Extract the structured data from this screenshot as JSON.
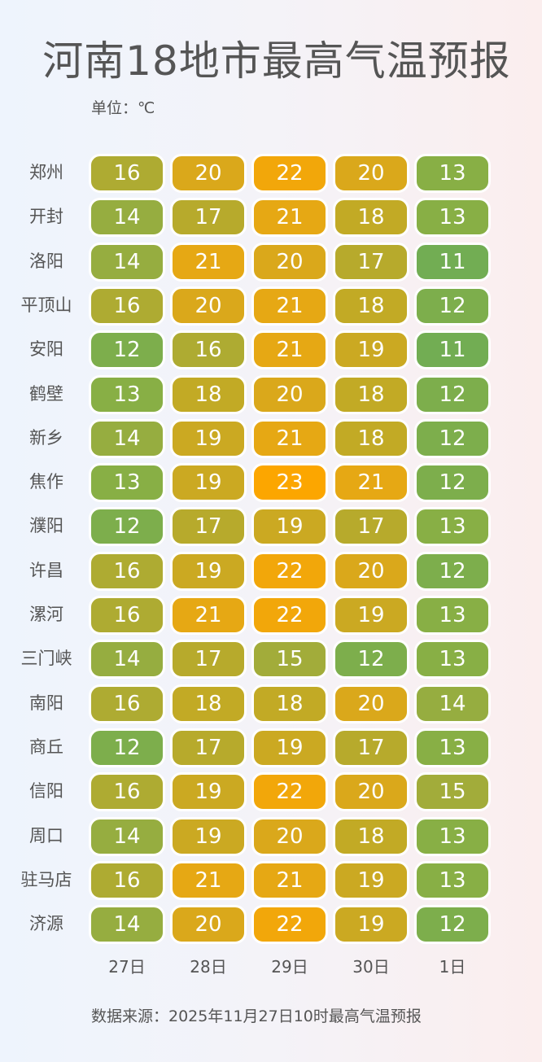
{
  "title": "河南18地市最高气温预报",
  "unit_label": "单位：℃",
  "source_label": "数据来源：2025年11月27日10时最高气温预报",
  "colors": {
    "11": "#72ad53",
    "12": "#7dae4c",
    "13": "#88af45",
    "14": "#96ad40",
    "15": "#a2ac3a",
    "16": "#aeab32",
    "17": "#b7aa2c",
    "18": "#c2aa25",
    "19": "#cba922",
    "20": "#daa81b",
    "21": "#e6a814",
    "22": "#f2a70a",
    "23": "#fca600"
  },
  "days": [
    "27日",
    "28日",
    "29日",
    "30日",
    "1日"
  ],
  "cities": [
    {
      "name": "郑州",
      "temps": [
        16,
        20,
        22,
        20,
        13
      ]
    },
    {
      "name": "开封",
      "temps": [
        14,
        17,
        21,
        18,
        13
      ]
    },
    {
      "name": "洛阳",
      "temps": [
        14,
        21,
        20,
        17,
        11
      ]
    },
    {
      "name": "平顶山",
      "temps": [
        16,
        20,
        21,
        18,
        12
      ]
    },
    {
      "name": "安阳",
      "temps": [
        12,
        16,
        21,
        19,
        11
      ]
    },
    {
      "name": "鹤壁",
      "temps": [
        13,
        18,
        20,
        18,
        12
      ]
    },
    {
      "name": "新乡",
      "temps": [
        14,
        19,
        21,
        18,
        12
      ]
    },
    {
      "name": "焦作",
      "temps": [
        13,
        19,
        23,
        21,
        12
      ]
    },
    {
      "name": "濮阳",
      "temps": [
        12,
        17,
        19,
        17,
        13
      ]
    },
    {
      "name": "许昌",
      "temps": [
        16,
        19,
        22,
        20,
        12
      ]
    },
    {
      "name": "漯河",
      "temps": [
        16,
        21,
        22,
        19,
        13
      ]
    },
    {
      "name": "三门峡",
      "temps": [
        14,
        17,
        15,
        12,
        13
      ]
    },
    {
      "name": "南阳",
      "temps": [
        16,
        18,
        18,
        20,
        14
      ]
    },
    {
      "name": "商丘",
      "temps": [
        12,
        17,
        19,
        17,
        13
      ]
    },
    {
      "name": "信阳",
      "temps": [
        16,
        19,
        22,
        20,
        15
      ]
    },
    {
      "name": "周口",
      "temps": [
        14,
        19,
        20,
        18,
        13
      ]
    },
    {
      "name": "驻马店",
      "temps": [
        16,
        21,
        21,
        19,
        13
      ]
    },
    {
      "name": "济源",
      "temps": [
        14,
        20,
        22,
        19,
        12
      ]
    }
  ],
  "chart_data": {
    "type": "heatmap",
    "title": "河南18地市最高气温预报",
    "unit": "℃",
    "x": [
      "27日",
      "28日",
      "29日",
      "30日",
      "1日"
    ],
    "y": [
      "郑州",
      "开封",
      "洛阳",
      "平顶山",
      "安阳",
      "鹤壁",
      "新乡",
      "焦作",
      "濮阳",
      "许昌",
      "漯河",
      "三门峡",
      "南阳",
      "商丘",
      "信阳",
      "周口",
      "驻马店",
      "济源"
    ],
    "values": [
      [
        16,
        20,
        22,
        20,
        13
      ],
      [
        14,
        17,
        21,
        18,
        13
      ],
      [
        14,
        21,
        20,
        17,
        11
      ],
      [
        16,
        20,
        21,
        18,
        12
      ],
      [
        12,
        16,
        21,
        19,
        11
      ],
      [
        13,
        18,
        20,
        18,
        12
      ],
      [
        14,
        19,
        21,
        18,
        12
      ],
      [
        13,
        19,
        23,
        21,
        12
      ],
      [
        12,
        17,
        19,
        17,
        13
      ],
      [
        16,
        19,
        22,
        20,
        12
      ],
      [
        16,
        21,
        22,
        19,
        13
      ],
      [
        14,
        17,
        15,
        12,
        13
      ],
      [
        16,
        18,
        18,
        20,
        14
      ],
      [
        12,
        17,
        19,
        17,
        13
      ],
      [
        16,
        19,
        22,
        20,
        15
      ],
      [
        14,
        19,
        20,
        18,
        13
      ],
      [
        16,
        21,
        21,
        19,
        13
      ],
      [
        14,
        20,
        22,
        19,
        12
      ]
    ],
    "color_scale": {
      "min": 11,
      "min_color": "#72ad53",
      "max": 23,
      "max_color": "#fca600"
    },
    "source": "数据来源：2025年11月27日10时最高气温预报"
  }
}
